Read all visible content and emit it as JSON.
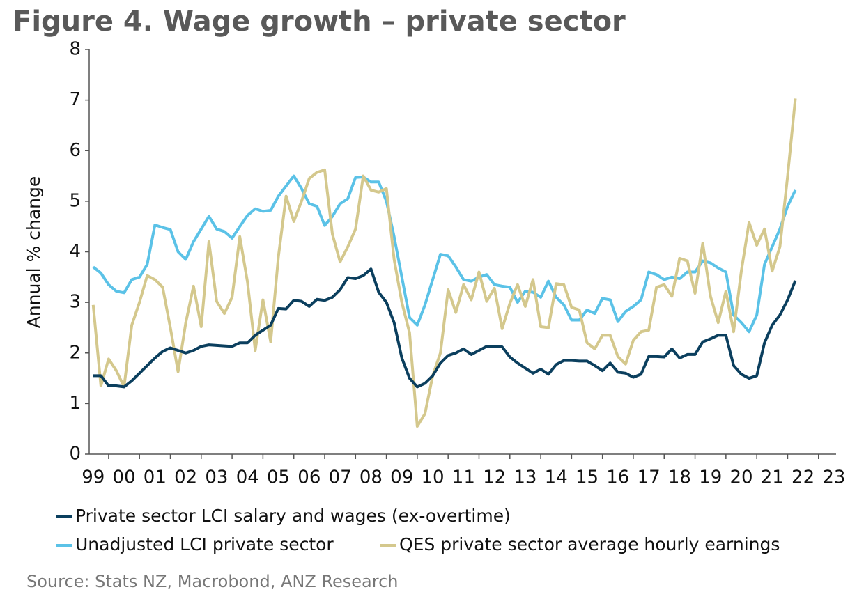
{
  "chart_data": {
    "type": "line",
    "title": "Figure 4. Wage growth – private sector",
    "y_label": "Annual % change",
    "source": "Source: Stats NZ, Macrobond, ANZ Research",
    "x": [
      1999.5,
      1999.75,
      2000,
      2000.25,
      2000.5,
      2000.75,
      2001,
      2001.25,
      2001.5,
      2001.75,
      2002,
      2002.25,
      2002.5,
      2002.75,
      2003,
      2003.25,
      2003.5,
      2003.75,
      2004,
      2004.25,
      2004.5,
      2004.75,
      2005,
      2005.25,
      2005.5,
      2005.75,
      2006,
      2006.25,
      2006.5,
      2006.75,
      2007,
      2007.25,
      2007.5,
      2007.75,
      2008,
      2008.25,
      2008.5,
      2008.75,
      2009,
      2009.25,
      2009.5,
      2009.75,
      2010,
      2010.25,
      2010.5,
      2010.75,
      2011,
      2011.25,
      2011.5,
      2011.75,
      2012,
      2012.25,
      2012.5,
      2012.75,
      2013,
      2013.25,
      2013.5,
      2013.75,
      2014,
      2014.25,
      2014.5,
      2014.75,
      2015,
      2015.25,
      2015.5,
      2015.75,
      2016,
      2016.25,
      2016.5,
      2016.75,
      2017,
      2017.25,
      2017.5,
      2017.75,
      2018,
      2018.25,
      2018.5,
      2018.75,
      2019,
      2019.25,
      2019.5,
      2019.75,
      2020,
      2020.25,
      2020.5,
      2020.75,
      2021,
      2021.25,
      2021.5,
      2021.75,
      2022,
      2022.25
    ],
    "series": [
      {
        "name": "Private sector LCI salary and wages (ex-overtime)",
        "color": "#0b3f5e",
        "values": [
          1.55,
          1.55,
          1.35,
          1.35,
          1.33,
          1.45,
          1.6,
          1.75,
          1.9,
          2.03,
          2.1,
          2.05,
          2.0,
          2.05,
          2.13,
          2.16,
          2.15,
          2.14,
          2.13,
          2.2,
          2.2,
          2.35,
          2.45,
          2.55,
          2.88,
          2.87,
          3.04,
          3.02,
          2.92,
          3.06,
          3.04,
          3.1,
          3.25,
          3.49,
          3.47,
          3.53,
          3.66,
          3.2,
          3.0,
          2.6,
          1.9,
          1.5,
          1.33,
          1.4,
          1.55,
          1.8,
          1.95,
          2.0,
          2.08,
          1.97,
          2.05,
          2.13,
          2.12,
          2.12,
          1.92,
          1.8,
          1.7,
          1.6,
          1.68,
          1.58,
          1.77,
          1.85,
          1.85,
          1.84,
          1.84,
          1.75,
          1.65,
          1.8,
          1.62,
          1.6,
          1.52,
          1.58,
          1.93,
          1.93,
          1.92,
          2.08,
          1.9,
          1.97,
          1.97,
          2.22,
          2.28,
          2.35,
          2.35,
          1.75,
          1.58,
          1.5,
          1.55,
          2.2,
          2.55,
          2.75,
          3.05,
          3.43
        ]
      },
      {
        "name": "Unadjusted LCI private sector",
        "color": "#5bc2e7",
        "values": [
          3.7,
          3.58,
          3.35,
          3.22,
          3.19,
          3.45,
          3.5,
          3.75,
          4.53,
          4.48,
          4.44,
          4.0,
          3.85,
          4.2,
          4.45,
          4.7,
          4.45,
          4.4,
          4.27,
          4.5,
          4.72,
          4.85,
          4.8,
          4.82,
          5.1,
          5.3,
          5.5,
          5.25,
          4.95,
          4.9,
          4.52,
          4.7,
          4.95,
          5.05,
          5.47,
          5.48,
          5.38,
          5.38,
          5.0,
          4.3,
          3.5,
          2.7,
          2.55,
          2.95,
          3.45,
          3.95,
          3.92,
          3.7,
          3.45,
          3.42,
          3.5,
          3.55,
          3.35,
          3.32,
          3.3,
          3.0,
          3.22,
          3.2,
          3.1,
          3.42,
          3.1,
          2.95,
          2.65,
          2.65,
          2.85,
          2.78,
          3.08,
          3.05,
          2.62,
          2.82,
          2.92,
          3.05,
          3.6,
          3.55,
          3.45,
          3.5,
          3.47,
          3.6,
          3.6,
          3.82,
          3.78,
          3.68,
          3.6,
          2.75,
          2.6,
          2.42,
          2.75,
          3.75,
          4.1,
          4.45,
          4.9,
          5.22
        ]
      },
      {
        "name": "QES private sector average hourly earnings",
        "color": "#d4c88d",
        "values": [
          2.95,
          1.35,
          1.88,
          1.65,
          1.33,
          2.55,
          3.0,
          3.53,
          3.45,
          3.3,
          2.5,
          1.63,
          2.6,
          3.32,
          2.52,
          4.2,
          3.02,
          2.78,
          3.1,
          4.3,
          3.4,
          2.05,
          3.05,
          2.22,
          3.9,
          5.1,
          4.6,
          5.0,
          5.45,
          5.57,
          5.62,
          4.35,
          3.8,
          4.1,
          4.45,
          5.5,
          5.22,
          5.18,
          5.25,
          3.85,
          3.0,
          2.4,
          0.55,
          0.8,
          1.55,
          2.0,
          3.25,
          2.8,
          3.35,
          3.05,
          3.6,
          3.02,
          3.28,
          2.48,
          2.98,
          3.35,
          2.92,
          3.45,
          2.52,
          2.5,
          3.37,
          3.35,
          2.9,
          2.85,
          2.2,
          2.08,
          2.35,
          2.35,
          1.93,
          1.78,
          2.25,
          2.42,
          2.45,
          3.3,
          3.35,
          3.12,
          3.87,
          3.82,
          3.18,
          4.17,
          3.12,
          2.6,
          3.22,
          2.42,
          3.62,
          4.58,
          4.13,
          4.45,
          3.62,
          4.1,
          5.5,
          7.03
        ]
      }
    ],
    "xlim": [
      1999.37,
      2023.57
    ],
    "xticks": [
      {
        "value": 1999,
        "label": "99"
      },
      {
        "value": 2000,
        "label": "00"
      },
      {
        "value": 2001,
        "label": "01"
      },
      {
        "value": 2002,
        "label": "02"
      },
      {
        "value": 2003,
        "label": "03"
      },
      {
        "value": 2004,
        "label": "04"
      },
      {
        "value": 2005,
        "label": "05"
      },
      {
        "value": 2006,
        "label": "06"
      },
      {
        "value": 2007,
        "label": "07"
      },
      {
        "value": 2008,
        "label": "08"
      },
      {
        "value": 2009,
        "label": "09"
      },
      {
        "value": 2010,
        "label": "10"
      },
      {
        "value": 2011,
        "label": "11"
      },
      {
        "value": 2012,
        "label": "12"
      },
      {
        "value": 2013,
        "label": "13"
      },
      {
        "value": 2014,
        "label": "14"
      },
      {
        "value": 2015,
        "label": "15"
      },
      {
        "value": 2016,
        "label": "16"
      },
      {
        "value": 2017,
        "label": "17"
      },
      {
        "value": 2018,
        "label": "18"
      },
      {
        "value": 2019,
        "label": "19"
      },
      {
        "value": 2020,
        "label": "20"
      },
      {
        "value": 2021,
        "label": "21"
      },
      {
        "value": 2022,
        "label": "22"
      },
      {
        "value": 2023,
        "label": "23"
      }
    ],
    "ylim": [
      0,
      8
    ],
    "yticks": [
      0,
      1,
      2,
      3,
      4,
      5,
      6,
      7,
      8
    ],
    "grid": false
  }
}
